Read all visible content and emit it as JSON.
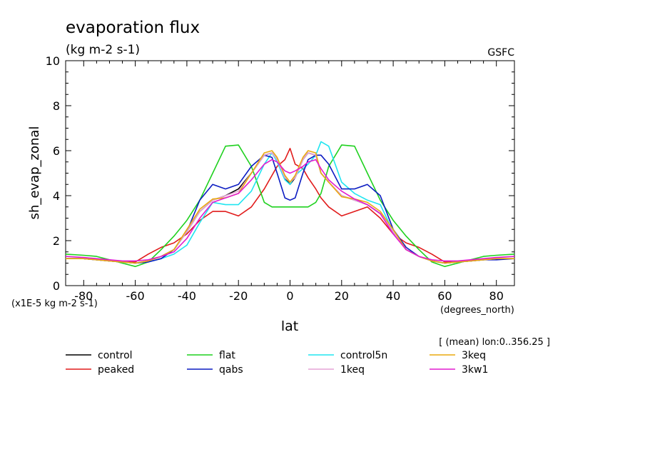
{
  "chart_data": {
    "type": "line",
    "title": "evaporation flux",
    "subtitle": "(kg m-2 s-1)",
    "source_label": "GSFC",
    "ylabel": "sh_evap_zonal",
    "xlabel": "lat",
    "x_units": "(degrees_north)",
    "y_scale_note": "(x1E-5 kg m-2 s-1)",
    "average_note": "[ (mean) lon:0..356.25 ]",
    "xlim": [
      -87,
      87
    ],
    "ylim": [
      0,
      10
    ],
    "x_ticks": [
      -80,
      -60,
      -40,
      -20,
      0,
      20,
      40,
      60,
      80
    ],
    "y_ticks": [
      0,
      2,
      4,
      6,
      8,
      10
    ],
    "grid": false,
    "legend_position": "bottom",
    "x": [
      -87,
      -80,
      -75,
      -70,
      -65,
      -60,
      -55,
      -50,
      -45,
      -40,
      -35,
      -30,
      -25,
      -20,
      -15,
      -10,
      -7,
      -5,
      -2,
      0,
      2,
      5,
      7,
      10,
      12,
      15,
      20,
      25,
      30,
      35,
      40,
      45,
      50,
      55,
      60,
      65,
      70,
      75,
      80,
      87
    ],
    "series": [
      {
        "name": "control",
        "color": "#000000",
        "values": [
          1.2,
          1.2,
          1.15,
          1.1,
          1.05,
          1.0,
          1.1,
          1.3,
          1.6,
          2.4,
          3.3,
          3.8,
          4.0,
          4.3,
          5.0,
          5.8,
          5.9,
          5.6,
          4.8,
          4.5,
          4.8,
          5.6,
          5.9,
          5.8,
          5.0,
          4.6,
          4.0,
          3.8,
          3.6,
          3.2,
          2.4,
          1.6,
          1.3,
          1.1,
          1.0,
          1.05,
          1.1,
          1.15,
          1.2,
          1.2
        ]
      },
      {
        "name": "peaked",
        "color": "#e11b1b",
        "values": [
          1.2,
          1.2,
          1.15,
          1.1,
          1.05,
          1.05,
          1.4,
          1.7,
          1.9,
          2.3,
          2.9,
          3.3,
          3.3,
          3.1,
          3.5,
          4.3,
          4.9,
          5.3,
          5.6,
          6.1,
          5.4,
          5.2,
          4.8,
          4.3,
          3.9,
          3.5,
          3.1,
          3.3,
          3.5,
          3.0,
          2.3,
          1.9,
          1.7,
          1.4,
          1.05,
          1.05,
          1.1,
          1.15,
          1.2,
          1.2
        ]
      },
      {
        "name": "flat",
        "color": "#1fd11f",
        "values": [
          1.4,
          1.35,
          1.3,
          1.15,
          1.0,
          0.85,
          1.05,
          1.6,
          2.2,
          2.9,
          3.8,
          5.0,
          6.2,
          6.25,
          5.3,
          3.7,
          3.5,
          3.5,
          3.5,
          3.5,
          3.5,
          3.5,
          3.5,
          3.7,
          4.1,
          5.3,
          6.25,
          6.2,
          5.0,
          3.8,
          2.9,
          2.2,
          1.6,
          1.05,
          0.85,
          1.0,
          1.15,
          1.3,
          1.35,
          1.4
        ]
      },
      {
        "name": "control5n",
        "color": "#20e5f0",
        "values": [
          1.2,
          1.2,
          1.15,
          1.1,
          1.05,
          1.0,
          1.05,
          1.2,
          1.4,
          1.8,
          2.8,
          3.7,
          3.6,
          3.6,
          4.2,
          5.4,
          5.9,
          5.5,
          4.7,
          4.5,
          4.9,
          5.2,
          5.4,
          5.8,
          6.4,
          6.2,
          4.6,
          4.1,
          3.8,
          3.6,
          2.4,
          1.6,
          1.3,
          1.1,
          1.0,
          1.05,
          1.1,
          1.15,
          1.2,
          1.2
        ]
      },
      {
        "name": "qabs",
        "color": "#0c1cc2",
        "values": [
          1.2,
          1.2,
          1.15,
          1.1,
          1.05,
          1.0,
          1.05,
          1.2,
          1.6,
          2.4,
          3.8,
          4.5,
          4.3,
          4.5,
          5.3,
          5.8,
          5.7,
          5.0,
          3.9,
          3.8,
          3.9,
          5.0,
          5.6,
          5.8,
          5.8,
          5.4,
          4.3,
          4.3,
          4.5,
          4.0,
          2.5,
          1.7,
          1.3,
          1.1,
          1.0,
          1.05,
          1.1,
          1.15,
          1.15,
          1.2
        ]
      },
      {
        "name": "1keq",
        "color": "#e6a3d6",
        "values": [
          1.2,
          1.2,
          1.15,
          1.1,
          1.05,
          1.0,
          1.1,
          1.3,
          1.6,
          2.4,
          3.3,
          3.8,
          4.0,
          4.2,
          5.0,
          5.8,
          5.9,
          5.6,
          4.8,
          4.6,
          4.8,
          5.6,
          5.9,
          5.8,
          5.0,
          4.6,
          4.0,
          3.8,
          3.6,
          3.2,
          2.4,
          1.6,
          1.3,
          1.1,
          1.0,
          1.05,
          1.1,
          1.15,
          1.2,
          1.2
        ]
      },
      {
        "name": "3keq",
        "color": "#eaaa0f",
        "values": [
          1.2,
          1.2,
          1.15,
          1.1,
          1.05,
          1.0,
          1.1,
          1.3,
          1.6,
          2.5,
          3.4,
          3.85,
          3.9,
          4.1,
          5.0,
          5.9,
          6.0,
          5.7,
          4.9,
          4.6,
          4.9,
          5.7,
          6.0,
          5.9,
          5.0,
          4.6,
          3.95,
          3.85,
          3.7,
          3.3,
          2.5,
          1.6,
          1.3,
          1.1,
          1.0,
          1.05,
          1.1,
          1.15,
          1.2,
          1.2
        ]
      },
      {
        "name": "3kw1",
        "color": "#e21bd0",
        "values": [
          1.3,
          1.25,
          1.2,
          1.15,
          1.1,
          1.1,
          1.15,
          1.3,
          1.5,
          2.1,
          3.0,
          3.7,
          3.9,
          4.1,
          4.7,
          5.4,
          5.6,
          5.5,
          5.1,
          5.0,
          5.1,
          5.3,
          5.5,
          5.6,
          5.2,
          4.7,
          4.2,
          3.85,
          3.6,
          3.2,
          2.3,
          1.6,
          1.3,
          1.15,
          1.1,
          1.1,
          1.15,
          1.2,
          1.25,
          1.3
        ]
      }
    ]
  }
}
